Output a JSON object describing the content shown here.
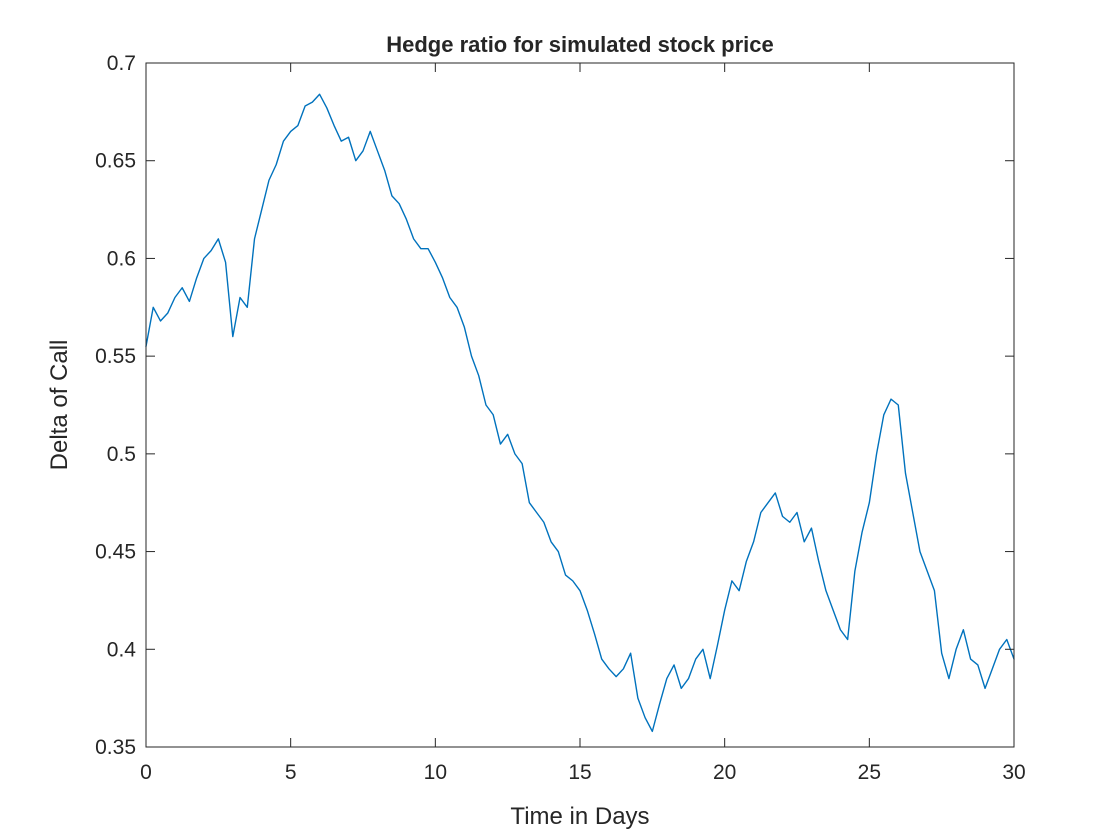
{
  "chart_data": {
    "type": "line",
    "title": "Hedge ratio for simulated stock price",
    "xlabel": "Time in Days",
    "ylabel": "Delta of Call",
    "xlim": [
      0,
      30
    ],
    "ylim": [
      0.35,
      0.7
    ],
    "xticks": [
      0,
      5,
      10,
      15,
      20,
      25,
      30
    ],
    "yticks": [
      0.35,
      0.4,
      0.45,
      0.5,
      0.55,
      0.6,
      0.65,
      0.7
    ],
    "xtick_labels": [
      "0",
      "5",
      "10",
      "15",
      "20",
      "25",
      "30"
    ],
    "ytick_labels": [
      "0.35",
      "0.4",
      "0.45",
      "0.5",
      "0.55",
      "0.6",
      "0.65",
      "0.7"
    ],
    "grid": false,
    "line_color": "#0072BD",
    "series": [
      {
        "x": [
          0,
          0.25,
          0.5,
          0.75,
          1,
          1.25,
          1.5,
          1.75,
          2,
          2.25,
          2.5,
          2.75,
          3,
          3.25,
          3.5,
          3.75,
          4,
          4.25,
          4.5,
          4.75,
          5,
          5.25,
          5.5,
          5.75,
          6,
          6.25,
          6.5,
          6.75,
          7,
          7.25,
          7.5,
          7.75,
          8,
          8.25,
          8.5,
          8.75,
          9,
          9.25,
          9.5,
          9.75,
          10,
          10.25,
          10.5,
          10.75,
          11,
          11.25,
          11.5,
          11.75,
          12,
          12.25,
          12.5,
          12.75,
          13,
          13.25,
          13.5,
          13.75,
          14,
          14.25,
          14.5,
          14.75,
          15,
          15.25,
          15.5,
          15.75,
          16,
          16.25,
          16.5,
          16.75,
          17,
          17.25,
          17.5,
          17.75,
          18,
          18.25,
          18.5,
          18.75,
          19,
          19.25,
          19.5,
          19.75,
          20,
          20.25,
          20.5,
          20.75,
          21,
          21.25,
          21.5,
          21.75,
          22,
          22.25,
          22.5,
          22.75,
          23,
          23.25,
          23.5,
          23.75,
          24,
          24.25,
          24.5,
          24.75,
          25,
          25.25,
          25.5,
          25.75,
          26,
          26.25,
          26.5,
          26.75,
          27,
          27.25,
          27.5,
          27.75,
          28,
          28.25,
          28.5,
          28.75,
          29,
          29.25,
          29.5,
          29.75,
          30
        ],
        "y": [
          0.555,
          0.575,
          0.568,
          0.572,
          0.58,
          0.585,
          0.578,
          0.59,
          0.6,
          0.604,
          0.61,
          0.598,
          0.56,
          0.58,
          0.575,
          0.61,
          0.625,
          0.64,
          0.648,
          0.66,
          0.665,
          0.668,
          0.678,
          0.68,
          0.684,
          0.677,
          0.668,
          0.66,
          0.662,
          0.65,
          0.655,
          0.665,
          0.655,
          0.645,
          0.632,
          0.628,
          0.62,
          0.61,
          0.605,
          0.605,
          0.598,
          0.59,
          0.58,
          0.575,
          0.565,
          0.55,
          0.54,
          0.525,
          0.52,
          0.505,
          0.51,
          0.5,
          0.495,
          0.475,
          0.47,
          0.465,
          0.455,
          0.45,
          0.438,
          0.435,
          0.43,
          0.42,
          0.408,
          0.395,
          0.39,
          0.386,
          0.39,
          0.398,
          0.375,
          0.365,
          0.358,
          0.372,
          0.385,
          0.392,
          0.38,
          0.385,
          0.395,
          0.4,
          0.385,
          0.402,
          0.42,
          0.435,
          0.43,
          0.445,
          0.455,
          0.47,
          0.475,
          0.48,
          0.468,
          0.465,
          0.47,
          0.455,
          0.462,
          0.445,
          0.43,
          0.42,
          0.41,
          0.405,
          0.44,
          0.46,
          0.475,
          0.5,
          0.52,
          0.528,
          0.525,
          0.49,
          0.47,
          0.45,
          0.44,
          0.43,
          0.398,
          0.385,
          0.4,
          0.41,
          0.395,
          0.392,
          0.38,
          0.39,
          0.4,
          0.405,
          0.395
        ]
      }
    ]
  }
}
